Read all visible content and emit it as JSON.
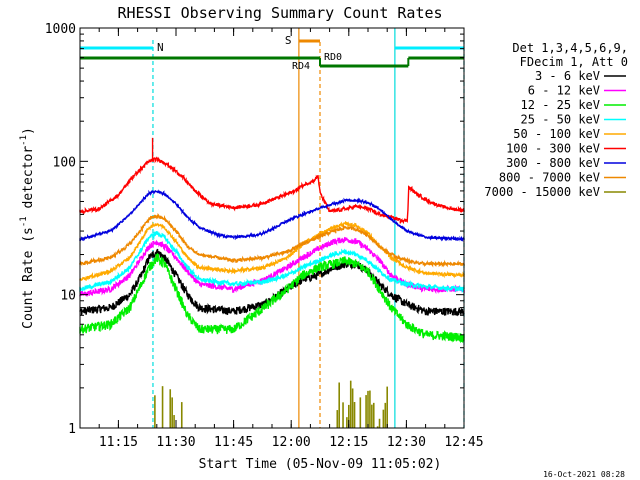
{
  "chart_data": {
    "type": "line",
    "title": "RHESSI Observing Summary Count Rates",
    "xlabel": "Start Time (05-Nov-09 11:05:02)",
    "ylabel_main": "Count Rate (s",
    "ylabel_sup1": "-1",
    "ylabel_mid": " detector",
    "ylabel_sup2": "-1",
    "ylabel_end": ")",
    "footer_date": "16-Oct-2021 08:28",
    "x_unit": "minutes after 11:05:02",
    "xlim": [
      0,
      100
    ],
    "ylim": [
      1,
      1000
    ],
    "yscale": "log",
    "xticks": [
      {
        "t": 10,
        "label": "11:15"
      },
      {
        "t": 25,
        "label": "11:30"
      },
      {
        "t": 40,
        "label": "11:45"
      },
      {
        "t": 55,
        "label": "12:00"
      },
      {
        "t": 70,
        "label": "12:15"
      },
      {
        "t": 85,
        "label": "12:30"
      },
      {
        "t": 100,
        "label": "12:45"
      }
    ],
    "yticks": [
      {
        "v": 1,
        "label": "1"
      },
      {
        "v": 10,
        "label": "10"
      },
      {
        "v": 100,
        "label": "100"
      },
      {
        "v": 1000,
        "label": "1000"
      }
    ],
    "legend": {
      "header": [
        "Det 1,3,4,5,6,9,",
        "FDecim 1, Att 0"
      ],
      "placement": "right"
    },
    "series": [
      {
        "name": "3 - 6 keV",
        "color": "#000000",
        "noise": 0.07,
        "points": [
          [
            0,
            7.5
          ],
          [
            8,
            8
          ],
          [
            13,
            10
          ],
          [
            16,
            14
          ],
          [
            18,
            19
          ],
          [
            20,
            21
          ],
          [
            22,
            19
          ],
          [
            25,
            14
          ],
          [
            28,
            10
          ],
          [
            31,
            8
          ],
          [
            40,
            7.5
          ],
          [
            48,
            8.5
          ],
          [
            54,
            11
          ],
          [
            58,
            13
          ],
          [
            62,
            14
          ],
          [
            66,
            16
          ],
          [
            69,
            17
          ],
          [
            72,
            17
          ],
          [
            75,
            15
          ],
          [
            78,
            12
          ],
          [
            81,
            10
          ],
          [
            85,
            8.5
          ],
          [
            90,
            7.5
          ],
          [
            100,
            7.5
          ]
        ]
      },
      {
        "name": "6 - 12 keV",
        "color": "#ff00ff",
        "noise": 0.05,
        "points": [
          [
            0,
            10
          ],
          [
            8,
            11
          ],
          [
            13,
            14
          ],
          [
            16,
            19
          ],
          [
            18,
            23
          ],
          [
            20,
            25
          ],
          [
            22,
            23
          ],
          [
            25,
            19
          ],
          [
            28,
            15
          ],
          [
            31,
            12
          ],
          [
            40,
            11
          ],
          [
            48,
            13
          ],
          [
            54,
            16
          ],
          [
            58,
            19
          ],
          [
            62,
            22
          ],
          [
            66,
            25
          ],
          [
            69,
            26
          ],
          [
            72,
            25
          ],
          [
            75,
            22
          ],
          [
            78,
            18
          ],
          [
            81,
            14
          ],
          [
            85,
            12
          ],
          [
            90,
            11
          ],
          [
            100,
            11
          ]
        ]
      },
      {
        "name": "12 - 25 keV",
        "color": "#00ee00",
        "noise": 0.08,
        "points": [
          [
            0,
            5.5
          ],
          [
            8,
            6
          ],
          [
            13,
            8
          ],
          [
            16,
            12
          ],
          [
            18,
            16
          ],
          [
            20,
            19
          ],
          [
            22,
            17
          ],
          [
            25,
            11
          ],
          [
            28,
            7
          ],
          [
            31,
            5.5
          ],
          [
            40,
            5.5
          ],
          [
            48,
            8
          ],
          [
            54,
            11
          ],
          [
            58,
            14
          ],
          [
            62,
            16
          ],
          [
            66,
            17
          ],
          [
            69,
            18
          ],
          [
            72,
            17
          ],
          [
            75,
            15
          ],
          [
            78,
            11
          ],
          [
            81,
            8
          ],
          [
            85,
            6
          ],
          [
            90,
            5
          ],
          [
            100,
            4.8
          ]
        ]
      },
      {
        "name": "25 - 50 keV",
        "color": "#00ffff",
        "noise": 0.04,
        "points": [
          [
            0,
            11
          ],
          [
            8,
            12.5
          ],
          [
            13,
            16
          ],
          [
            16,
            22
          ],
          [
            18,
            27
          ],
          [
            20,
            29
          ],
          [
            22,
            27
          ],
          [
            25,
            21
          ],
          [
            28,
            16
          ],
          [
            31,
            13
          ],
          [
            40,
            12
          ],
          [
            48,
            12.5
          ],
          [
            54,
            14
          ],
          [
            58,
            16
          ],
          [
            62,
            18
          ],
          [
            66,
            20
          ],
          [
            69,
            21
          ],
          [
            72,
            20
          ],
          [
            75,
            18
          ],
          [
            78,
            15
          ],
          [
            81,
            13
          ],
          [
            85,
            12
          ],
          [
            90,
            11.5
          ],
          [
            100,
            11
          ]
        ]
      },
      {
        "name": "50 - 100 keV",
        "color": "#ffaa00",
        "noise": 0.03,
        "points": [
          [
            0,
            13
          ],
          [
            8,
            15
          ],
          [
            13,
            19
          ],
          [
            16,
            26
          ],
          [
            18,
            32
          ],
          [
            20,
            34
          ],
          [
            22,
            32
          ],
          [
            25,
            25
          ],
          [
            28,
            19
          ],
          [
            31,
            16
          ],
          [
            40,
            15
          ],
          [
            48,
            16
          ],
          [
            54,
            19
          ],
          [
            58,
            24
          ],
          [
            62,
            28
          ],
          [
            66,
            32
          ],
          [
            69,
            34
          ],
          [
            72,
            33
          ],
          [
            75,
            29
          ],
          [
            78,
            23
          ],
          [
            81,
            19
          ],
          [
            85,
            16
          ],
          [
            90,
            14.5
          ],
          [
            100,
            14
          ]
        ]
      },
      {
        "name": "100 - 300 keV",
        "color": "#ff0000",
        "noise": 0.03,
        "points": [
          [
            0,
            42
          ],
          [
            5,
            44
          ],
          [
            10,
            56
          ],
          [
            14,
            78
          ],
          [
            18,
            100
          ],
          [
            20,
            104
          ],
          [
            22,
            98
          ],
          [
            26,
            80
          ],
          [
            30,
            60
          ],
          [
            34,
            48
          ],
          [
            40,
            45
          ],
          [
            46,
            47
          ],
          [
            52,
            54
          ],
          [
            56,
            60
          ],
          [
            58,
            66
          ],
          [
            61,
            72
          ],
          [
            62,
            78
          ],
          [
            62.5,
            58
          ],
          [
            65,
            42
          ],
          [
            69,
            44
          ],
          [
            72,
            46
          ],
          [
            75,
            44
          ],
          [
            78,
            40
          ],
          [
            81,
            38
          ],
          [
            84,
            36
          ],
          [
            85.3,
            36
          ],
          [
            85.6,
            64
          ],
          [
            88,
            56
          ],
          [
            91,
            50
          ],
          [
            94,
            46
          ],
          [
            97,
            44
          ],
          [
            100,
            43
          ]
        ]
      },
      {
        "name": "300 - 800 keV",
        "color": "#0000dd",
        "noise": 0.02,
        "points": [
          [
            0,
            26
          ],
          [
            8,
            30
          ],
          [
            13,
            40
          ],
          [
            16,
            50
          ],
          [
            18,
            58
          ],
          [
            20,
            60
          ],
          [
            22,
            57
          ],
          [
            25,
            48
          ],
          [
            28,
            38
          ],
          [
            31,
            32
          ],
          [
            36,
            28
          ],
          [
            40,
            27
          ],
          [
            46,
            28
          ],
          [
            50,
            31
          ],
          [
            54,
            36
          ],
          [
            58,
            40
          ],
          [
            62,
            44
          ],
          [
            66,
            48
          ],
          [
            69,
            51
          ],
          [
            72,
            51
          ],
          [
            75,
            49
          ],
          [
            78,
            44
          ],
          [
            81,
            37
          ],
          [
            85,
            30
          ],
          [
            90,
            27
          ],
          [
            100,
            26
          ]
        ]
      },
      {
        "name": "800 - 7000 keV",
        "color": "#ee8800",
        "noise": 0.03,
        "points": [
          [
            0,
            17
          ],
          [
            8,
            19
          ],
          [
            13,
            24
          ],
          [
            16,
            31
          ],
          [
            18,
            37
          ],
          [
            20,
            39
          ],
          [
            22,
            37
          ],
          [
            25,
            30
          ],
          [
            28,
            23
          ],
          [
            31,
            20
          ],
          [
            40,
            18
          ],
          [
            48,
            19
          ],
          [
            54,
            21
          ],
          [
            58,
            24
          ],
          [
            62,
            27
          ],
          [
            66,
            30
          ],
          [
            69,
            32
          ],
          [
            72,
            31
          ],
          [
            75,
            28
          ],
          [
            78,
            23
          ],
          [
            81,
            20
          ],
          [
            85,
            18
          ],
          [
            90,
            17
          ],
          [
            100,
            17
          ]
        ]
      },
      {
        "name": "7000 - 15000 keV",
        "color": "#888800",
        "noise": 0,
        "points": []
      }
    ],
    "background_series": {
      "name": "7000 - 15000 keV",
      "color": "#888800"
    },
    "overlays": {
      "saa_label": "S",
      "night_label": "N",
      "rd0_label": "RD0",
      "rd4_label": "RD4",
      "night_cyan_left": [
        0,
        19
      ],
      "night_cyan_right": [
        82,
        100
      ],
      "saa_segment": [
        57,
        62.5
      ],
      "green_bar": [
        [
          0,
          62.5
        ],
        [
          62.5,
          85.5
        ],
        [
          85.5,
          100
        ]
      ],
      "vlines_cyan_solid": [
        82
      ],
      "vlines_cyan_dashed": [
        19,
        100
      ],
      "vlines_orange_solid": [
        57
      ],
      "vlines_orange_dashed": [
        62.5
      ]
    },
    "grid": false
  }
}
